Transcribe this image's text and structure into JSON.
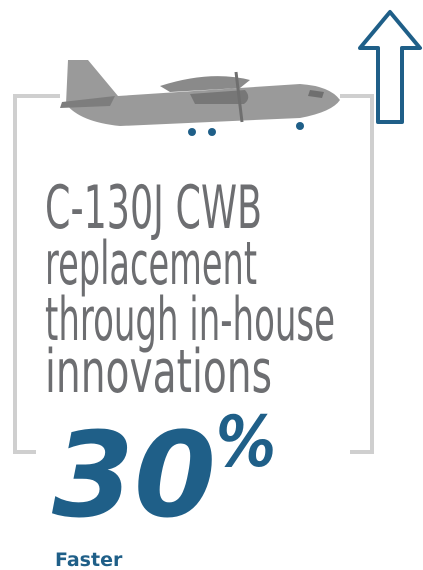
{
  "heading": {
    "lines": [
      "C-130J CWB",
      "replacement",
      "through in-house",
      "innovations"
    ]
  },
  "stat": {
    "value": 30,
    "unit": "%",
    "label": "Faster"
  }
}
